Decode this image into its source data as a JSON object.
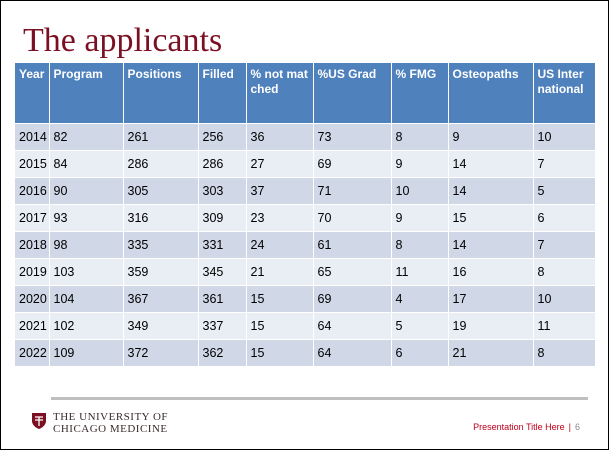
{
  "header": {
    "title": "The applicants"
  },
  "table": {
    "columns": [
      "Year",
      "Program",
      "Positions",
      "Filled",
      "% not matched",
      "%US Grad",
      "% FMG",
      "Osteopaths",
      "US International"
    ],
    "rows": [
      [
        2014,
        82,
        261,
        256,
        36,
        73,
        8,
        9,
        10
      ],
      [
        2015,
        84,
        286,
        286,
        27,
        69,
        9,
        14,
        7
      ],
      [
        2016,
        90,
        305,
        303,
        37,
        71,
        10,
        14,
        5
      ],
      [
        2017,
        93,
        316,
        309,
        23,
        70,
        9,
        15,
        6
      ],
      [
        2018,
        98,
        335,
        331,
        24,
        61,
        8,
        14,
        7
      ],
      [
        2019,
        103,
        359,
        345,
        21,
        65,
        11,
        16,
        8
      ],
      [
        2020,
        104,
        367,
        361,
        15,
        69,
        4,
        17,
        10
      ],
      [
        2021,
        102,
        349,
        337,
        15,
        64,
        5,
        19,
        11
      ],
      [
        2022,
        109,
        372,
        362,
        15,
        64,
        6,
        21,
        8
      ]
    ]
  },
  "footer": {
    "logo_line1": "THE UNIVERSITY OF",
    "logo_line2": "CHICAGO MEDICINE",
    "presentation_title": "Presentation Title Here",
    "separator": "|",
    "page": 6
  }
}
